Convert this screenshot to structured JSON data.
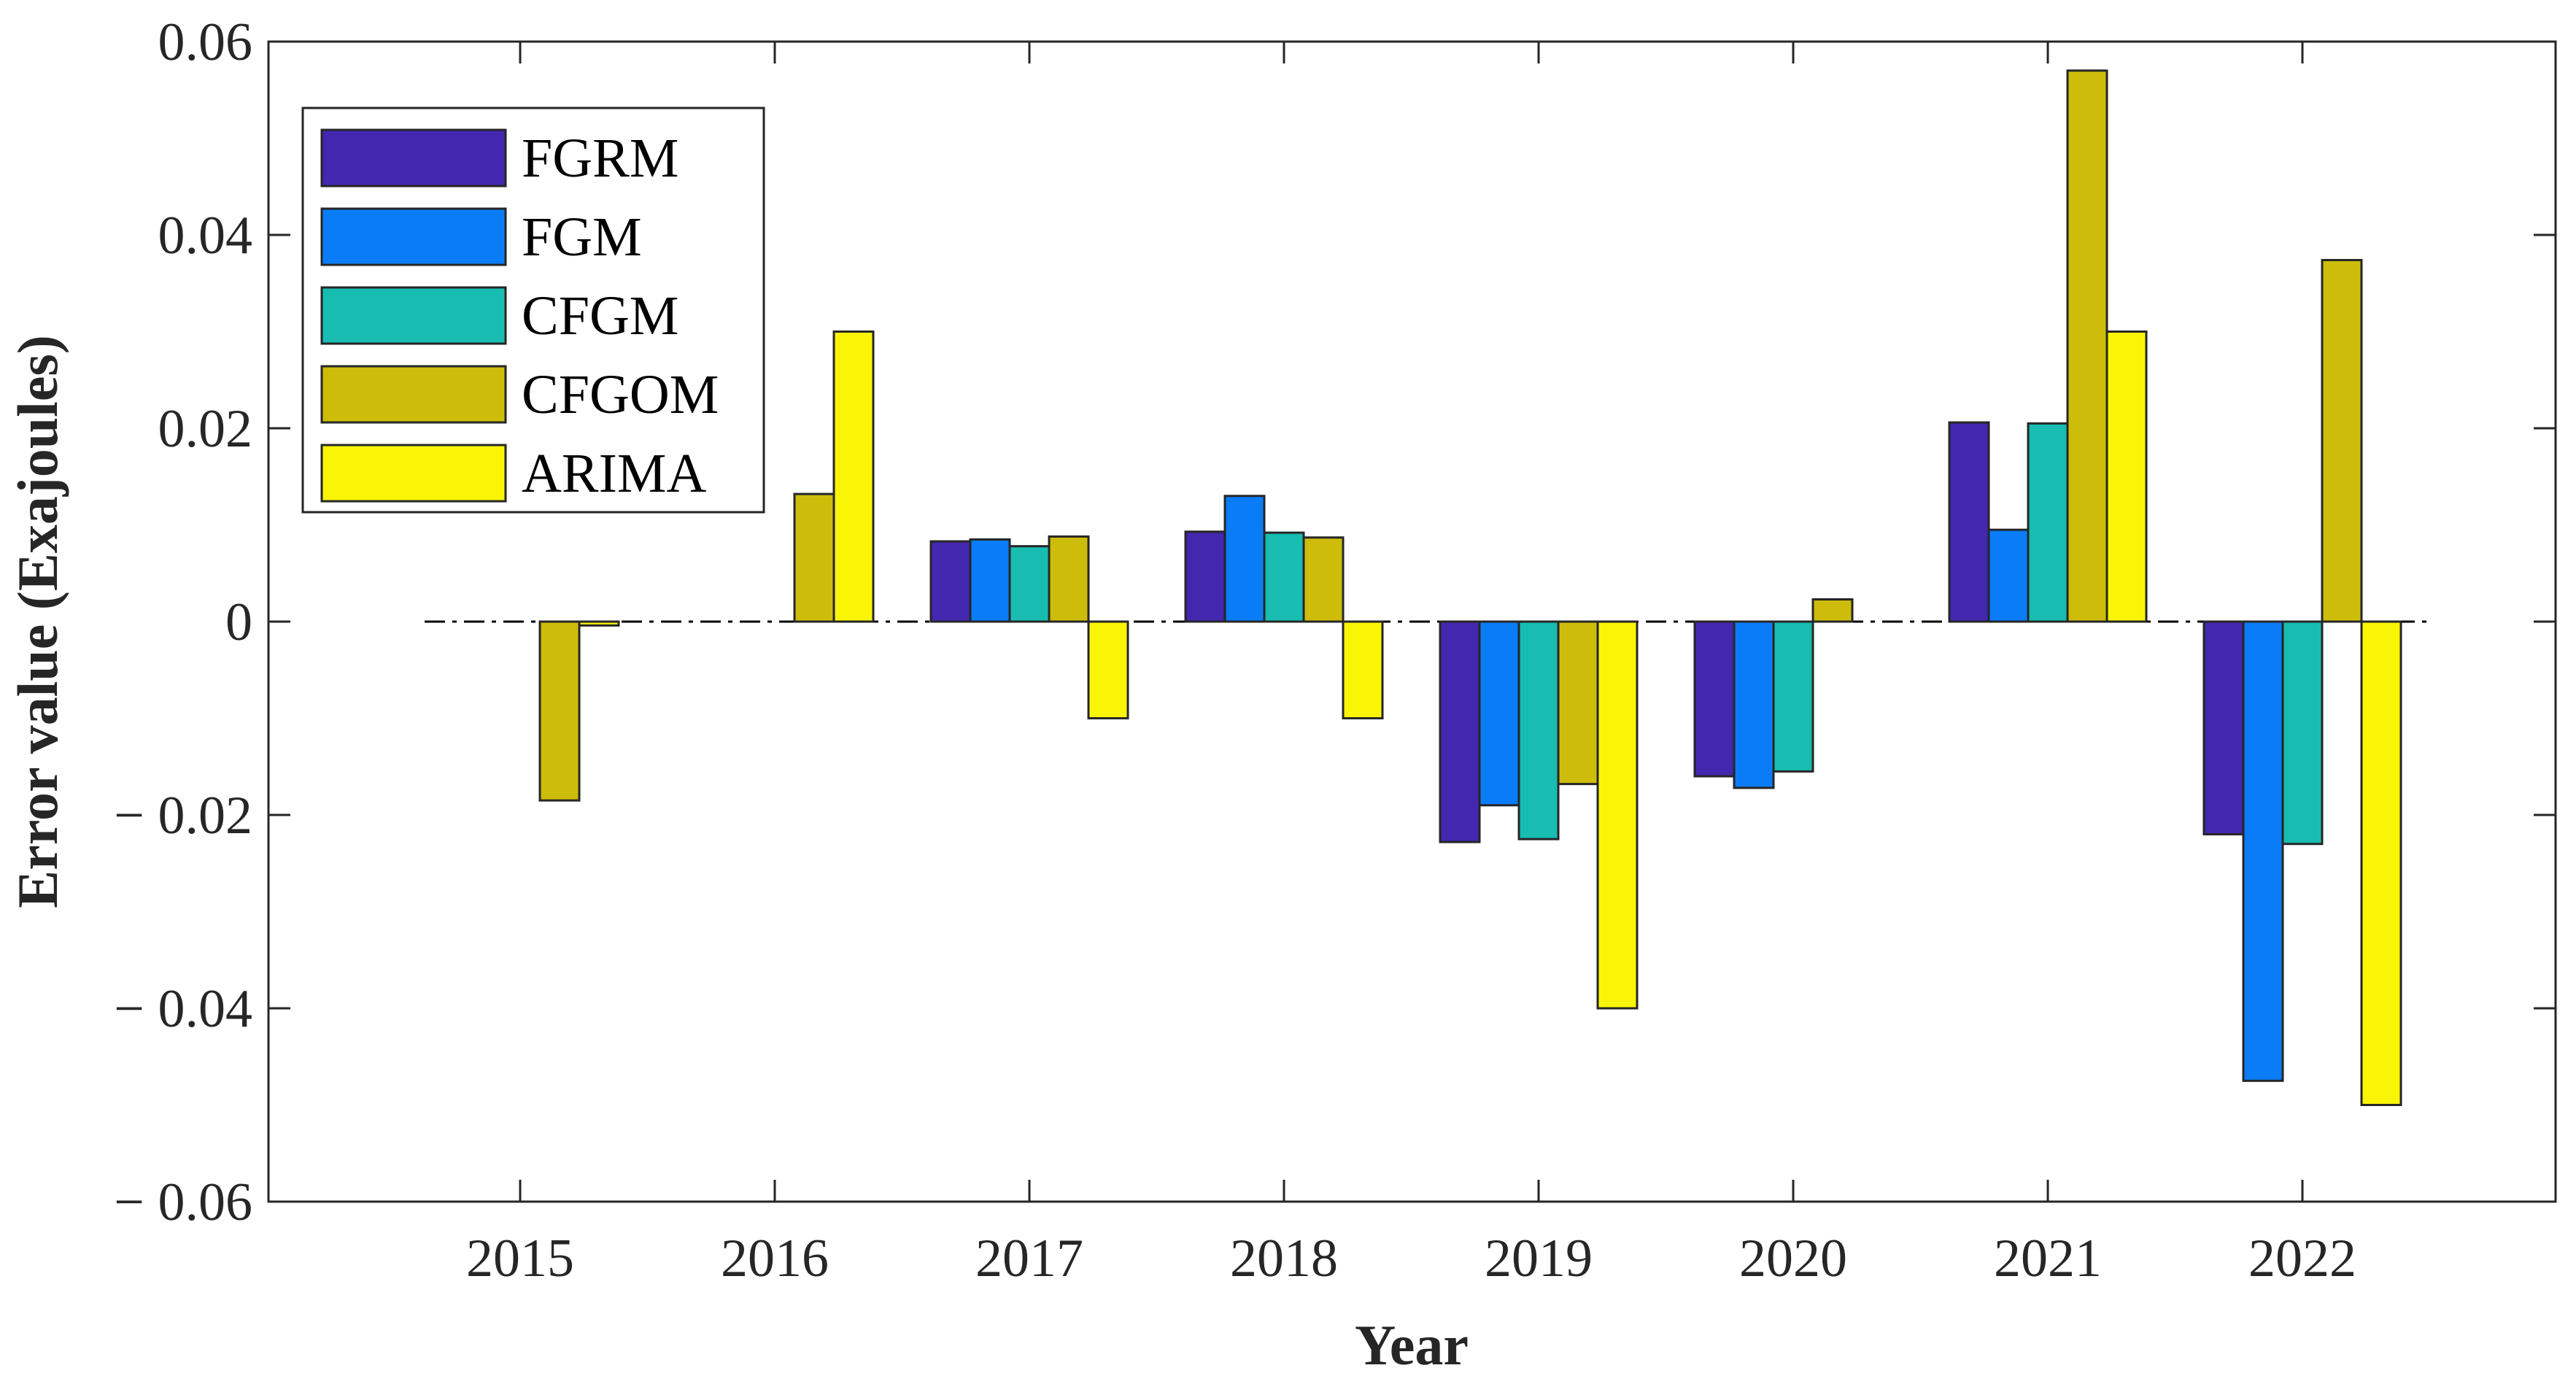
{
  "chart_data": {
    "type": "bar",
    "title": "",
    "xlabel": "Year",
    "ylabel": "Error value (Exajoules)",
    "ylim": [
      -0.06,
      0.06
    ],
    "yticks": [
      {
        "value": 0.06,
        "label": "0.06"
      },
      {
        "value": 0.04,
        "label": "0.04"
      },
      {
        "value": 0.02,
        "label": "0.02"
      },
      {
        "value": 0,
        "label": "0"
      },
      {
        "value": -0.02,
        "label": "− 0.02"
      },
      {
        "value": -0.04,
        "label": "− 0.04"
      },
      {
        "value": -0.06,
        "label": "− 0.06"
      }
    ],
    "categories": [
      "2015",
      "2016",
      "2017",
      "2018",
      "2019",
      "2020",
      "2021",
      "2022"
    ],
    "series": [
      {
        "name": "FGRM",
        "color": "#4427AF",
        "values": [
          0,
          0,
          0.0083,
          0.0093,
          -0.0228,
          -0.016,
          0.0206,
          -0.022
        ]
      },
      {
        "name": "FGM",
        "color": "#0A7CF8",
        "values": [
          0,
          0,
          0.0085,
          0.013,
          -0.019,
          -0.0172,
          0.0095,
          -0.0475
        ]
      },
      {
        "name": "CFGM",
        "color": "#18BCB0",
        "values": [
          0,
          0,
          0.0078,
          0.0092,
          -0.0225,
          -0.0155,
          0.0205,
          -0.023
        ]
      },
      {
        "name": "CFGOM",
        "color": "#CDBD0A",
        "values": [
          -0.0185,
          0.0132,
          0.0088,
          0.0087,
          -0.0168,
          0.0023,
          0.057,
          0.0374
        ]
      },
      {
        "name": "ARIMA",
        "color": "#FAF507",
        "values": [
          -0.0004,
          0.03,
          -0.01,
          -0.01,
          -0.04,
          0,
          0.03,
          -0.05
        ]
      }
    ],
    "legend": "top-left",
    "grid": false,
    "zero_line": "dash-dot"
  }
}
